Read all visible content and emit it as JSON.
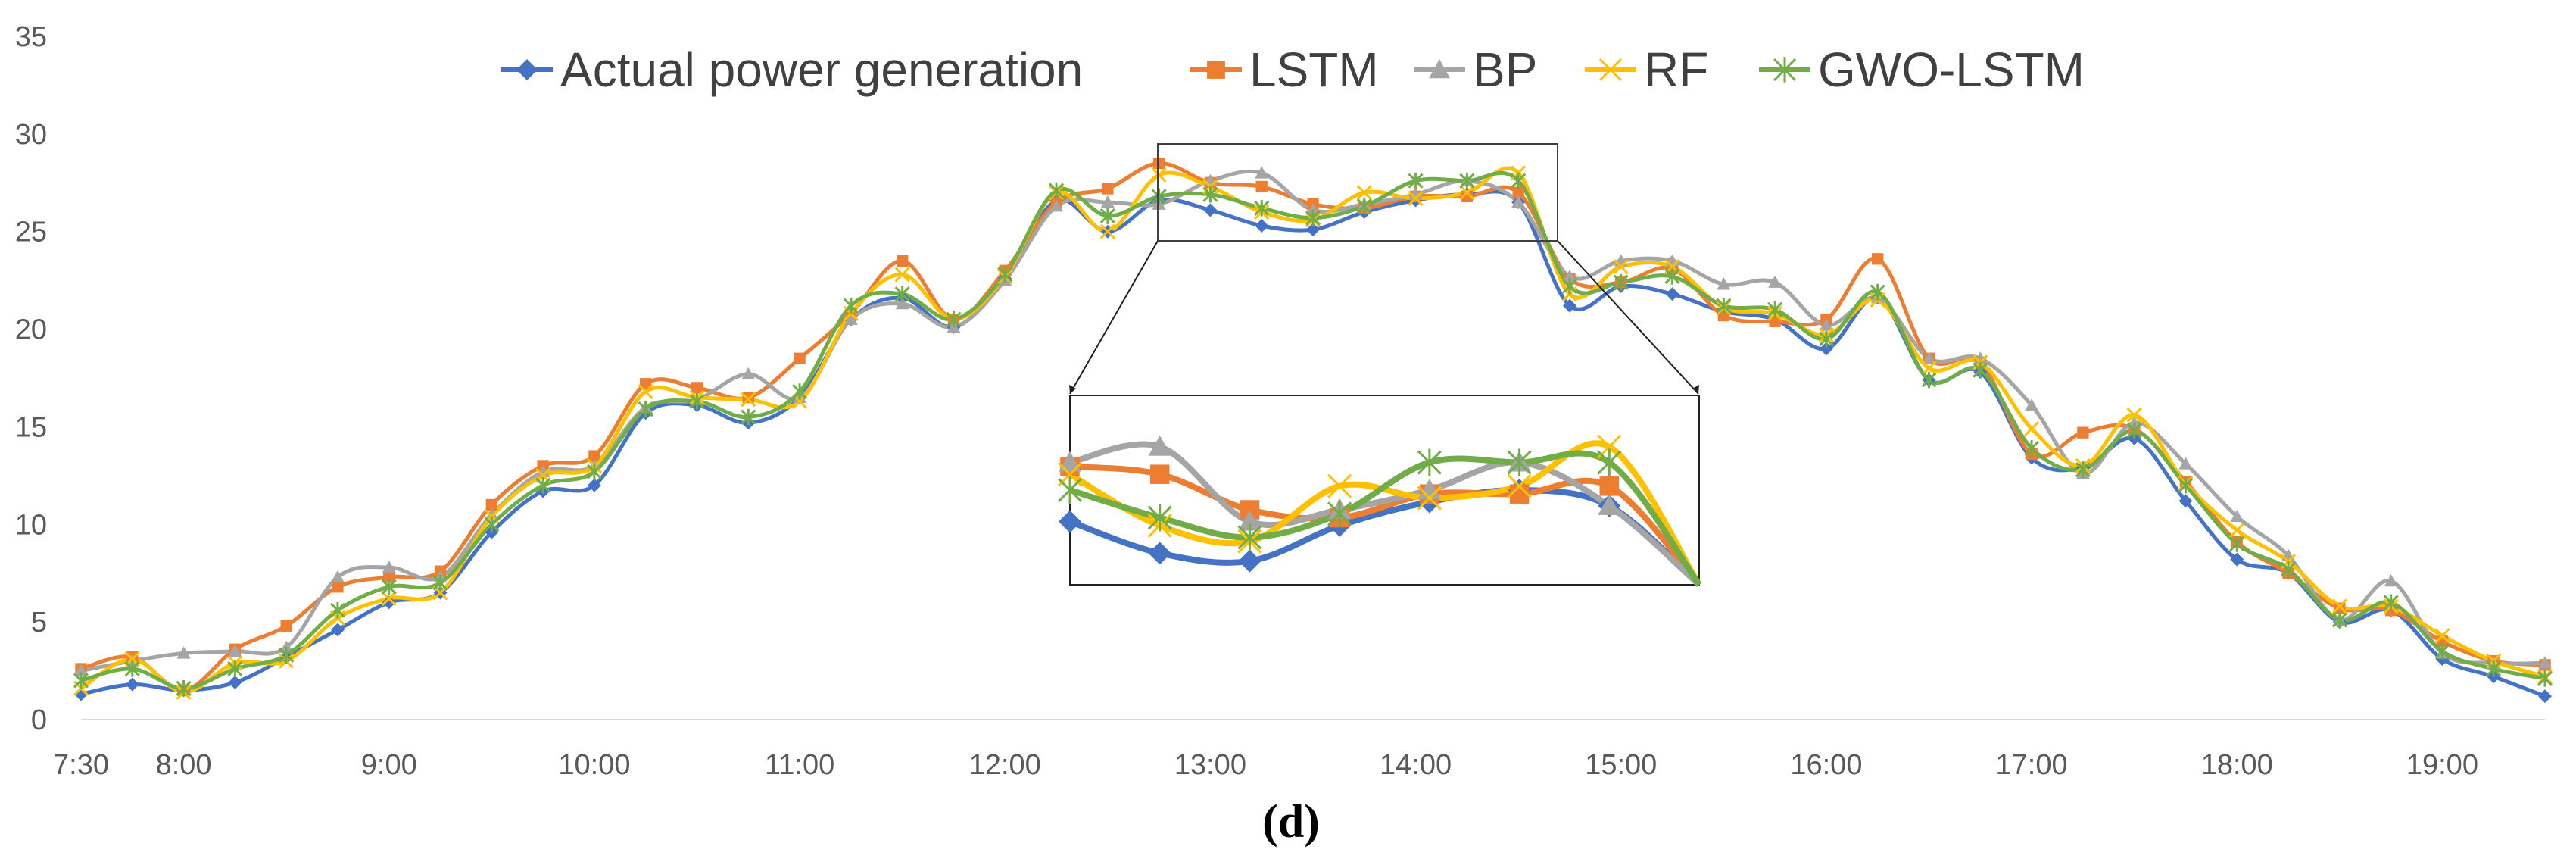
{
  "chart_data": {
    "type": "line",
    "caption": "(d)",
    "ylim": [
      0,
      35
    ],
    "yticks": [
      0,
      5,
      10,
      15,
      20,
      25,
      30,
      35
    ],
    "x_ticks": [
      "7:30",
      "8:00",
      "9:00",
      "10:00",
      "11:00",
      "12:00",
      "13:00",
      "14:00",
      "15:00",
      "16:00",
      "17:00",
      "18:00",
      "19:00"
    ],
    "x_tick_index": [
      0,
      2,
      6,
      10,
      14,
      18,
      22,
      26,
      30,
      34,
      38,
      42,
      46
    ],
    "grid": false,
    "legend_position": "top",
    "inset": {
      "x_range": [
        22,
        29
      ],
      "y_range": [
        24.5,
        29.3
      ]
    },
    "series": [
      {
        "name": "Actual power generation",
        "color": "#4472C4",
        "marker": "diamond",
        "values": [
          1.3,
          1.8,
          1.5,
          1.9,
          3.2,
          4.6,
          6.0,
          6.5,
          9.6,
          11.7,
          12.0,
          15.7,
          16.1,
          15.2,
          16.5,
          20.5,
          21.6,
          20.1,
          22.6,
          26.6,
          25.0,
          26.6,
          26.1,
          25.3,
          25.1,
          26.0,
          26.6,
          26.9,
          26.5,
          21.2,
          22.2,
          21.8,
          20.9,
          20.5,
          19.0,
          21.6,
          17.4,
          17.8,
          13.4,
          12.9,
          14.4,
          11.2,
          8.2,
          7.5,
          5.0,
          5.6,
          3.1,
          2.2,
          1.2
        ]
      },
      {
        "name": "LSTM",
        "color": "#ED7D31",
        "marker": "square",
        "values": [
          2.6,
          3.2,
          1.5,
          3.6,
          4.8,
          6.8,
          7.3,
          7.6,
          11.0,
          13.0,
          13.5,
          17.2,
          17.0,
          16.5,
          18.5,
          20.8,
          23.5,
          20.5,
          23.0,
          26.5,
          27.2,
          28.5,
          27.5,
          27.3,
          26.4,
          26.2,
          26.8,
          26.8,
          27.0,
          22.6,
          22.4,
          23.1,
          20.7,
          20.4,
          20.5,
          23.6,
          18.5,
          18.3,
          13.6,
          14.7,
          14.9,
          12.2,
          9.1,
          7.5,
          5.7,
          5.6,
          4.0,
          3.0,
          2.8
        ]
      },
      {
        "name": "BP",
        "color": "#A5A5A5",
        "marker": "triangle",
        "values": [
          2.5,
          3.0,
          3.4,
          3.5,
          3.7,
          7.3,
          7.8,
          7.3,
          10.5,
          12.7,
          13.0,
          16.0,
          16.4,
          17.7,
          16.5,
          20.5,
          21.3,
          20.1,
          22.5,
          26.3,
          26.5,
          26.4,
          27.6,
          28.0,
          26.1,
          26.4,
          26.9,
          27.6,
          26.5,
          22.7,
          23.5,
          23.5,
          22.3,
          22.4,
          20.2,
          21.6,
          18.5,
          18.5,
          16.1,
          12.6,
          15.2,
          13.1,
          10.4,
          8.4,
          5.1,
          7.1,
          3.4,
          2.9,
          2.9
        ]
      },
      {
        "name": "RF",
        "color": "#FFC000",
        "marker": "x",
        "values": [
          1.6,
          3.1,
          1.4,
          2.9,
          3.0,
          5.2,
          6.2,
          6.5,
          10.4,
          12.5,
          13.0,
          16.8,
          16.5,
          16.4,
          16.3,
          20.8,
          22.8,
          20.5,
          22.7,
          27.0,
          25.0,
          27.9,
          27.3,
          26.0,
          25.6,
          27.0,
          26.7,
          27.0,
          28.0,
          21.8,
          23.2,
          23.2,
          21.1,
          20.8,
          19.7,
          21.5,
          18.0,
          18.3,
          14.9,
          13.0,
          15.6,
          12.1,
          9.7,
          8.1,
          5.8,
          5.8,
          4.3,
          3.0,
          2.2
        ]
      },
      {
        "name": "GWO-LSTM",
        "color": "#70AD47",
        "marker": "asterisk",
        "values": [
          2.0,
          2.6,
          1.6,
          2.6,
          3.3,
          5.6,
          6.8,
          7.0,
          10.0,
          12.0,
          12.7,
          15.9,
          16.3,
          15.5,
          16.8,
          21.2,
          21.8,
          20.5,
          22.8,
          27.1,
          25.8,
          26.8,
          26.9,
          26.2,
          25.7,
          26.3,
          27.6,
          27.6,
          27.6,
          22.2,
          22.4,
          22.7,
          21.2,
          21.0,
          19.5,
          21.9,
          17.4,
          17.9,
          13.9,
          12.8,
          14.8,
          12.0,
          9.0,
          7.7,
          5.1,
          6.0,
          3.5,
          2.6,
          2.1
        ]
      }
    ]
  }
}
